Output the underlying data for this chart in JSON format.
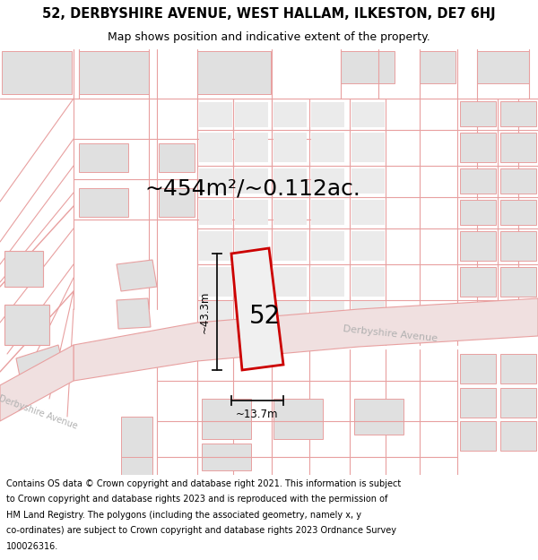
{
  "title_line1": "52, DERBYSHIRE AVENUE, WEST HALLAM, ILKESTON, DE7 6HJ",
  "title_line2": "Map shows position and indicative extent of the property.",
  "area_text": "~454m²/~0.112ac.",
  "label_52": "52",
  "dim_height": "~43.3m",
  "dim_width": "~13.7m",
  "road_label_upper": "Derbyshire Avenue",
  "road_label_lower": "Derbyshire Avenue",
  "footer_text": "Contains OS data © Crown copyright and database right 2021. This information is subject to Crown copyright and database rights 2023 and is reproduced with the permission of HM Land Registry. The polygons (including the associated geometry, namely x, y co-ordinates) are subject to Crown copyright and database rights 2023 Ordnance Survey 100026316.",
  "bg_color": "#f7f7f7",
  "line_color": "#e8a0a0",
  "building_fill": "#e0e0e0",
  "building_edge": "#e8a0a0",
  "road_fill": "#f0e0e0",
  "road_edge": "#e8a0a0",
  "plot_fill": "#f0f0f0",
  "plot_edge": "#cc0000",
  "dim_color": "#111111",
  "road_text_color": "#b0b0b0",
  "title_fs": 10.5,
  "subtitle_fs": 9.0,
  "area_fs": 18,
  "label_fs": 20,
  "dim_fs": 8.5,
  "footer_fs": 7.0,
  "road_label_fs": 8.0
}
